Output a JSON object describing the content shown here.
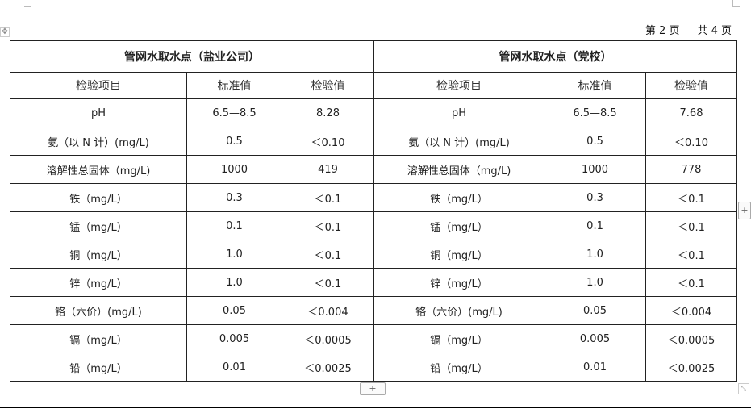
{
  "page_info": {
    "current": "第 2 页",
    "total": "共 4 页"
  },
  "sections": [
    "管网水取水点（盐业公司）",
    "管网水取水点（党校）"
  ],
  "columns": [
    "检验项目",
    "标准值",
    "检验值"
  ],
  "rows": [
    {
      "item": "pH",
      "std": "6.5—8.5",
      "v1": "8.28",
      "v2": "7.68"
    },
    {
      "item": "氨（以 N 计）(mg/L)",
      "std": "0.5",
      "v1": "＜0.10",
      "v2": "＜0.10"
    },
    {
      "item": "溶解性总固体（mg/L)",
      "std": "1000",
      "v1": "419",
      "v2": "778"
    },
    {
      "item": "铁（mg/L）",
      "std": "0.3",
      "v1": "＜0.1",
      "v2": "＜0.1"
    },
    {
      "item": "锰（mg/L）",
      "std": "0.1",
      "v1": "＜0.1",
      "v2": "＜0.1"
    },
    {
      "item": "铜（mg/L）",
      "std": "1.0",
      "v1": "＜0.1",
      "v2": "＜0.1"
    },
    {
      "item": "锌（mg/L）",
      "std": "1.0",
      "v1": "＜0.1",
      "v2": "＜0.1"
    },
    {
      "item": "铬（六价）(mg/L)",
      "std": "0.05",
      "v1": "＜0.004",
      "v2": "＜0.004"
    },
    {
      "item": "镉（mg/L）",
      "std": "0.005",
      "v1": "＜0.0005",
      "v2": "＜0.0005"
    },
    {
      "item": "铅（mg/L）",
      "std": "0.01",
      "v1": "＜0.0025",
      "v2": "＜0.0025"
    }
  ],
  "controls": {
    "add_row": "+",
    "add_col": "+",
    "move": "✥",
    "resize": "⤡"
  }
}
